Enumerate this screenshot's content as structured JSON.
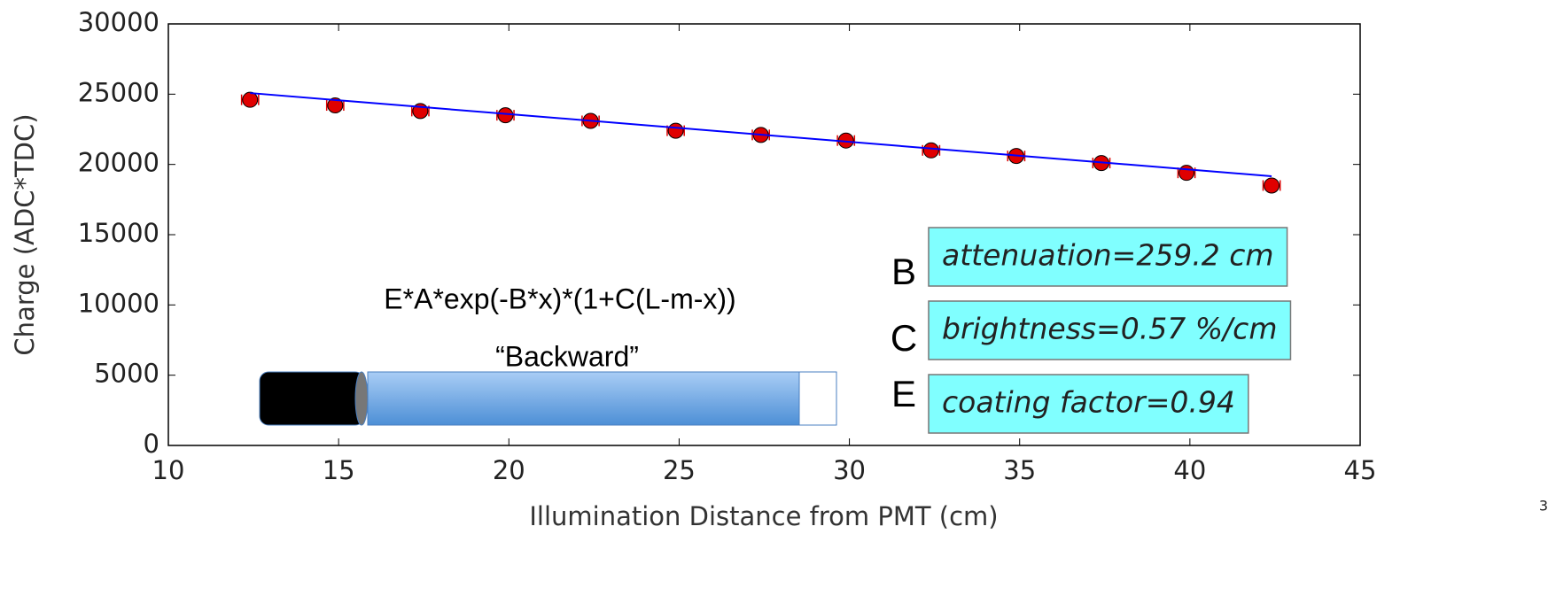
{
  "chart_data": {
    "type": "scatter",
    "x_label": "Illumination Distance from PMT (cm)",
    "y_label": "Charge (ADC*TDC)",
    "x": [
      12.4,
      14.9,
      17.4,
      19.9,
      22.4,
      24.9,
      27.4,
      29.9,
      32.4,
      34.9,
      37.4,
      39.9,
      42.4
    ],
    "series": [
      {
        "color": "#e00000",
        "values": [
          24600,
          24200,
          23800,
          23500,
          23100,
          22400,
          22100,
          21700,
          21000,
          20600,
          20100,
          19400,
          18500
        ],
        "xerr": [
          0.25,
          0.25,
          0.25,
          0.25,
          0.25,
          0.25,
          0.25,
          0.25,
          0.25,
          0.25,
          0.25,
          0.25,
          0.25
        ]
      }
    ],
    "fit": {
      "color": "#0000ff",
      "x": [
        12.4,
        42.4
      ],
      "values": [
        25080,
        19160
      ]
    },
    "xlim": [
      10,
      45
    ],
    "xticks": [
      10,
      15,
      20,
      25,
      30,
      35,
      40,
      45
    ],
    "ylim": [
      0,
      30000
    ],
    "yticks": [
      0,
      5000,
      10000,
      15000,
      20000,
      25000,
      30000
    ],
    "annotations": {
      "formula": "E*A*exp(-B*x)*(1+C(L-m-x))",
      "label": "“Backward”",
      "params": [
        {
          "letter": "B",
          "text": "attenuation=259.2 cm"
        },
        {
          "letter": "C",
          "text": "brightness=0.57 %/cm"
        },
        {
          "letter": "E",
          "text": "coating factor=0.94"
        }
      ]
    },
    "page_number": "3"
  }
}
